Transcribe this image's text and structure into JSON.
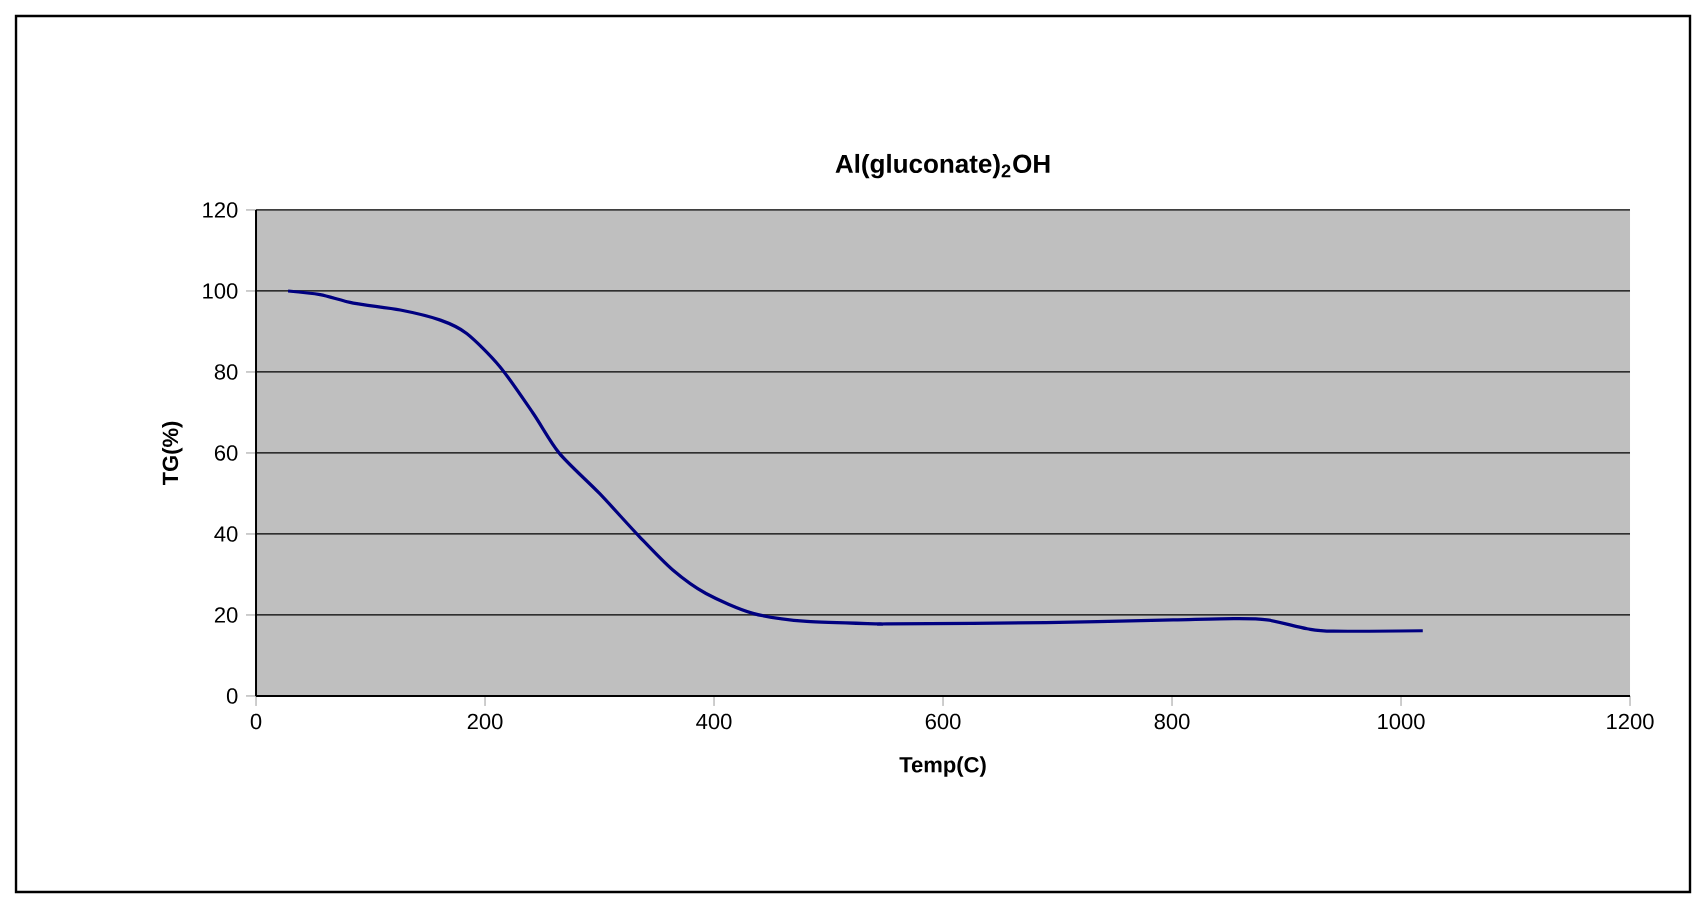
{
  "chart_data": {
    "type": "line",
    "title": "Al(gluconate)$_{2}$OH",
    "xlabel": "Temp(C)",
    "ylabel": "TG(%)",
    "x": [
      28,
      56,
      85,
      126,
      161,
      184,
      213,
      242,
      265,
      300,
      335,
      364,
      393,
      434,
      481,
      545,
      551,
      690,
      801,
      854,
      883,
      918,
      941,
      1019
    ],
    "series": [
      {
        "color": "#000080",
        "values": [
          100,
          99.1,
          97,
          95.3,
          92.8,
          89.5,
          81.3,
          69.8,
          59.9,
          50,
          39.3,
          31.1,
          25.3,
          20.4,
          18.4,
          17.8,
          17.8,
          18.1,
          18.8,
          19.1,
          18.8,
          16.6,
          16,
          16.1
        ]
      }
    ],
    "xlim": [
      0,
      1200
    ],
    "xticks": [
      0,
      200,
      400,
      600,
      800,
      1000,
      1200
    ],
    "ylim": [
      0,
      120
    ],
    "yticks": [
      0,
      20,
      40,
      60,
      80,
      100,
      120
    ],
    "grid": "y",
    "legend": false,
    "marker": "none",
    "line_style": "solid"
  }
}
